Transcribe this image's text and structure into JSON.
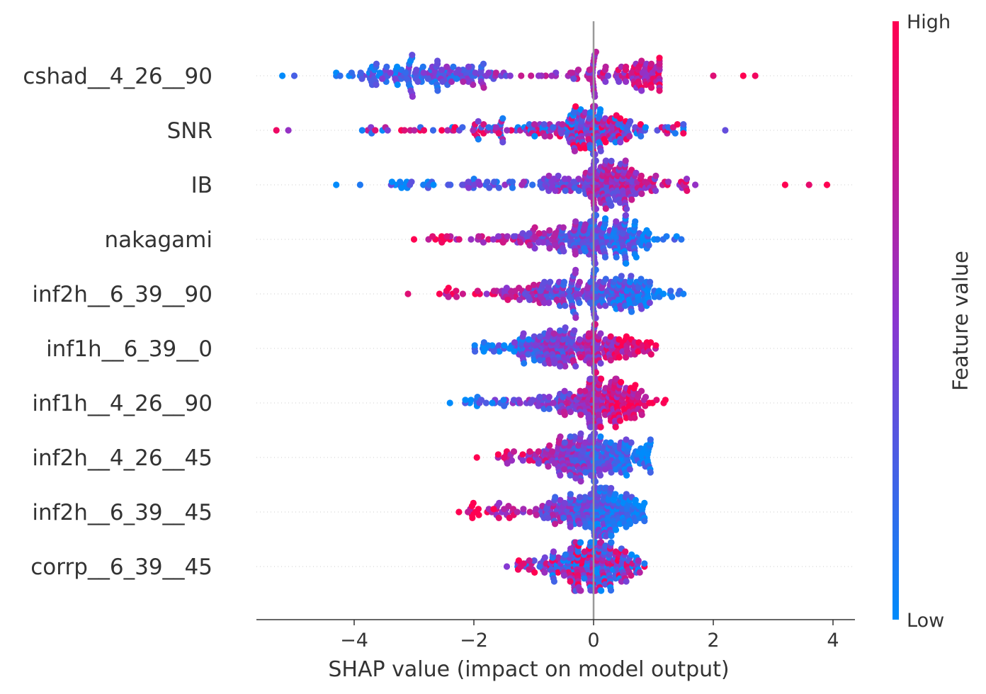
{
  "chart_data": {
    "type": "scatter",
    "subtype": "shap-beeswarm",
    "title": "",
    "xlabel": "SHAP value (impact on model output)",
    "ylabel": "",
    "xlim": [
      -5.6,
      4.5
    ],
    "xticks": [
      -4,
      -2,
      0,
      2,
      4
    ],
    "xtick_labels": [
      "−4",
      "−2",
      "0",
      "2",
      "4"
    ],
    "grid": false,
    "features": [
      {
        "name": "cshad__4_26__90",
        "min": -5.2,
        "max": 2.7,
        "core_min": -4.3,
        "core_max": 1.1,
        "dense_center": -2.9,
        "pos_center": 0.85,
        "relation": "positive",
        "outliers": [
          -5.2,
          -5.0,
          2.0,
          2.5,
          2.7
        ]
      },
      {
        "name": "SNR",
        "min": -5.3,
        "max": 2.2,
        "core_min": -3.9,
        "core_max": 1.5,
        "dense_center": -0.3,
        "pos_center": 0.1,
        "relation": "mixed",
        "outliers": [
          -5.3,
          -5.1,
          2.2
        ]
      },
      {
        "name": "IB",
        "min": -4.3,
        "max": 3.9,
        "core_min": -3.4,
        "core_max": 1.7,
        "dense_center": -0.1,
        "pos_center": 0.4,
        "relation": "positive",
        "outliers": [
          -4.3,
          -3.9,
          3.2,
          3.6,
          3.9
        ]
      },
      {
        "name": "nakagami",
        "min": -3.0,
        "max": 1.5,
        "core_min": -2.8,
        "core_max": 1.5,
        "dense_center": -0.4,
        "pos_center": 0.5,
        "relation": "negative",
        "outliers": [
          -3.0
        ]
      },
      {
        "name": "inf2h__6_39__90",
        "min": -3.1,
        "max": 1.6,
        "core_min": -2.7,
        "core_max": 1.6,
        "dense_center": -0.5,
        "pos_center": 0.6,
        "relation": "negative",
        "outliers": [
          -3.1,
          1.5
        ]
      },
      {
        "name": "inf1h__6_39__0",
        "min": -2.0,
        "max": 1.15,
        "core_min": -2.0,
        "core_max": 1.15,
        "dense_center": -0.7,
        "pos_center": 0.3,
        "relation": "positive",
        "outliers": []
      },
      {
        "name": "inf1h__4_26__90",
        "min": -2.4,
        "max": 1.2,
        "core_min": -2.2,
        "core_max": 1.2,
        "dense_center": 0.1,
        "pos_center": 0.2,
        "relation": "positive",
        "outliers": [
          -2.4
        ]
      },
      {
        "name": "inf2h__4_26__45",
        "min": -1.95,
        "max": 0.95,
        "core_min": -1.6,
        "core_max": 0.95,
        "dense_center": -0.3,
        "pos_center": 0.4,
        "relation": "negative",
        "outliers": [
          -1.95
        ]
      },
      {
        "name": "inf2h__6_39__45",
        "min": -2.25,
        "max": 0.85,
        "core_min": -2.1,
        "core_max": 0.85,
        "dense_center": -0.1,
        "pos_center": 0.4,
        "relation": "negative",
        "outliers": [
          -2.25
        ]
      },
      {
        "name": "corrp__6_39__45",
        "min": -1.45,
        "max": 0.85,
        "core_min": -1.3,
        "core_max": 0.85,
        "dense_center": -0.3,
        "pos_center": 0.3,
        "relation": "mixed",
        "outliers": [
          -1.45
        ]
      }
    ],
    "colorbar": {
      "label": "Feature value",
      "high_label": "High",
      "low_label": "Low",
      "high_color": "#ff0051",
      "mid_color": "#8a36d0",
      "low_color": "#008bfb"
    },
    "zero_line_color": "#999999"
  }
}
